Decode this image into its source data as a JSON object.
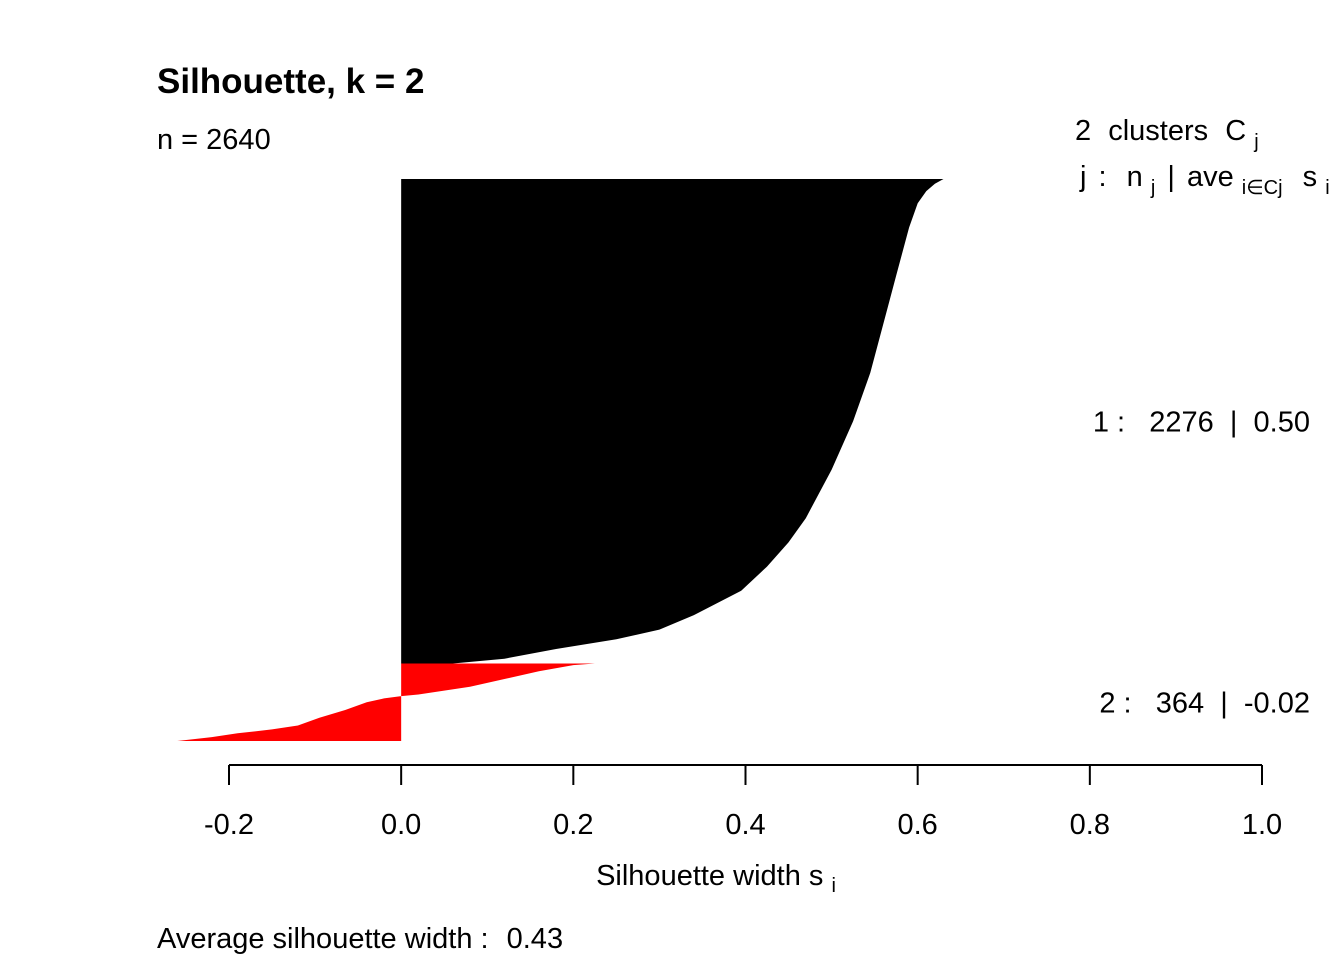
{
  "chart_data": {
    "type": "silhouette",
    "title": "Silhouette, k = 2",
    "subtitle": "n = 2640",
    "legend_header": {
      "count": "2",
      "clusters_word": "clusters",
      "C": "C",
      "j_sub": "j",
      "row2_j": "j",
      "colon": ":",
      "n": "n",
      "n_sub": "j",
      "bar": "|",
      "ave": "ave",
      "ave_sub": "i∈Cj",
      "s": "s",
      "s_sub": "i"
    },
    "xlabel": "Silhouette width s",
    "xlabel_sub": "i",
    "xlim": [
      -0.2,
      1.0
    ],
    "xticks": [
      "-0.2",
      "0.0",
      "0.2",
      "0.4",
      "0.6",
      "0.8",
      "1.0"
    ],
    "footer_label": "Average silhouette width :",
    "footer_value": "0.43",
    "clusters": [
      {
        "label": "1 :   2276  |  0.50",
        "cluster": 1,
        "size": 2276,
        "avg_width": 0.5,
        "color": "#000000",
        "profile": [
          [
            0.0,
            0.63
          ],
          [
            0.01,
            0.62
          ],
          [
            0.025,
            0.61
          ],
          [
            0.05,
            0.6
          ],
          [
            0.1,
            0.59
          ],
          [
            0.2,
            0.575
          ],
          [
            0.3,
            0.56
          ],
          [
            0.4,
            0.545
          ],
          [
            0.5,
            0.525
          ],
          [
            0.6,
            0.5
          ],
          [
            0.7,
            0.47
          ],
          [
            0.75,
            0.45
          ],
          [
            0.8,
            0.425
          ],
          [
            0.85,
            0.395
          ],
          [
            0.9,
            0.34
          ],
          [
            0.93,
            0.3
          ],
          [
            0.95,
            0.25
          ],
          [
            0.97,
            0.18
          ],
          [
            0.99,
            0.12
          ],
          [
            1.0,
            0.06
          ]
        ]
      },
      {
        "label": "2 :   364  |  -0.02",
        "cluster": 2,
        "size": 364,
        "avg_width": -0.02,
        "color": "#ff0000",
        "profile": [
          [
            0.0,
            0.225
          ],
          [
            0.02,
            0.2
          ],
          [
            0.1,
            0.16
          ],
          [
            0.2,
            0.12
          ],
          [
            0.3,
            0.08
          ],
          [
            0.35,
            0.05
          ],
          [
            0.4,
            0.02
          ],
          [
            0.42,
            0.0
          ],
          [
            0.45,
            -0.02
          ],
          [
            0.5,
            -0.04
          ],
          [
            0.6,
            -0.065
          ],
          [
            0.7,
            -0.095
          ],
          [
            0.8,
            -0.12
          ],
          [
            0.85,
            -0.15
          ],
          [
            0.9,
            -0.19
          ],
          [
            0.95,
            -0.22
          ],
          [
            1.0,
            -0.26
          ]
        ]
      }
    ]
  }
}
